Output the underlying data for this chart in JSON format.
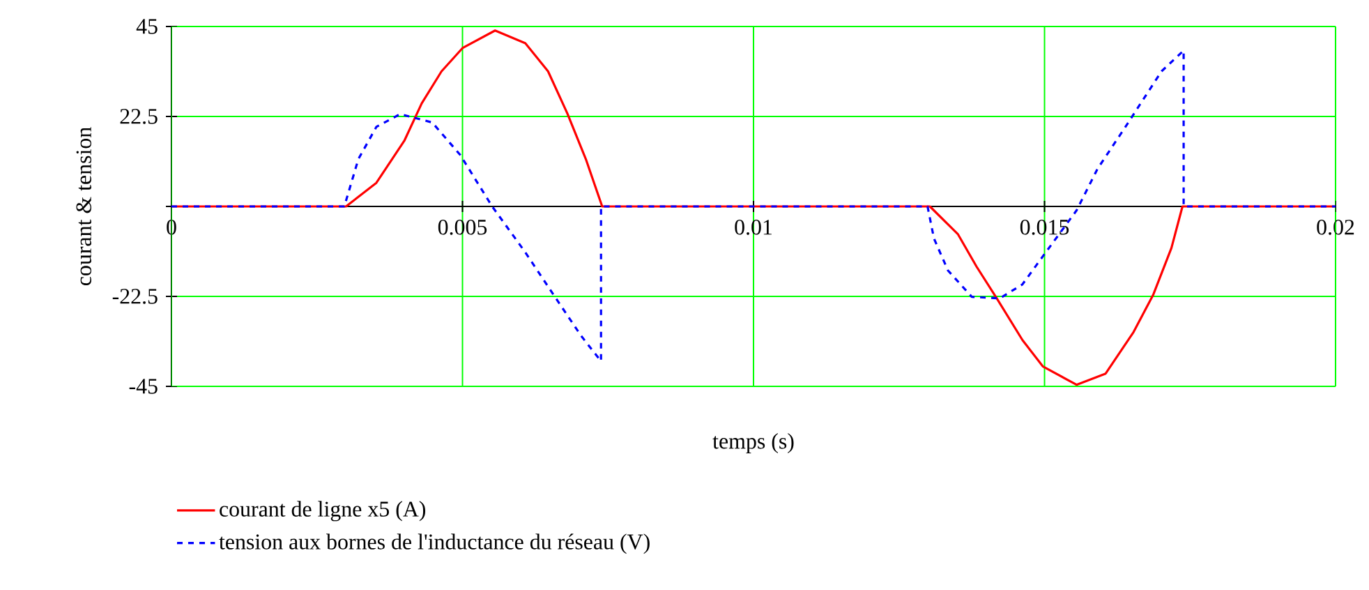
{
  "chart_data": {
    "type": "line",
    "xlabel": "temps (s)",
    "ylabel": "courant & tension",
    "xlim": [
      0,
      0.02
    ],
    "xticks": [
      0,
      0.005,
      0.01,
      0.015,
      0.02
    ],
    "ylim": [
      -45,
      45
    ],
    "yticks": [
      -45,
      -22.5,
      {
        "value": 0,
        "label": null
      },
      22.5,
      45
    ],
    "grid": true,
    "legend": "bottom",
    "series": [
      {
        "name": "courant de ligne x5 (A)",
        "color": "#ff0000",
        "line_style": "solid",
        "x": [
          0,
          0.003,
          0.00352,
          0.004,
          0.0043,
          0.00464,
          0.005,
          0.00556,
          0.00608,
          0.00647,
          0.0068,
          0.00712,
          0.0074,
          0.01303,
          0.01351,
          0.01383,
          0.01418,
          0.01462,
          0.01497,
          0.01555,
          0.01605,
          0.01653,
          0.01687,
          0.01718,
          0.01737,
          0.02
        ],
        "values": [
          0,
          0,
          5.9,
          16.4,
          25.8,
          33.8,
          39.6,
          44,
          40.8,
          33.8,
          23.3,
          11.8,
          0,
          0,
          -6.9,
          -15,
          -23,
          -33.4,
          -40,
          -44.6,
          -41.8,
          -31.4,
          -22,
          -10.4,
          0,
          0
        ]
      },
      {
        "name": "tension aux bornes de l'inductance du réseau (V)",
        "color": "#0000ff",
        "line_style": "dashed",
        "x": [
          0,
          0.00297,
          0.00321,
          0.00352,
          0.00393,
          0.00448,
          0.00496,
          0.00551,
          0.00608,
          0.00656,
          0.00704,
          0.00738,
          0.00738,
          0.01299,
          0.0131,
          0.01334,
          0.01375,
          0.01423,
          0.01462,
          0.01497,
          0.01555,
          0.01591,
          0.01639,
          0.01701,
          0.01739,
          0.01739,
          0.02
        ],
        "values": [
          0,
          0,
          11.8,
          19.9,
          23.1,
          21,
          12.9,
          0,
          -11.5,
          -22,
          -32.4,
          -38.7,
          0,
          0,
          -8,
          -16,
          -22.6,
          -23,
          -19.5,
          -12.5,
          -1,
          9.4,
          19.9,
          33.8,
          39,
          0,
          0
        ]
      }
    ]
  }
}
